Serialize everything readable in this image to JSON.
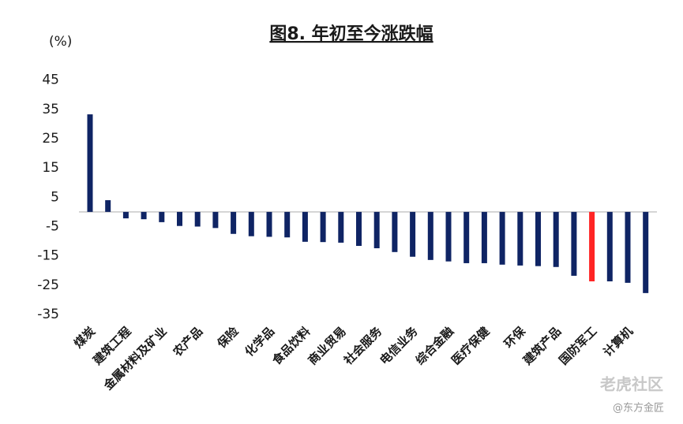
{
  "chart_data": {
    "type": "bar",
    "title": "图8. 年初至今涨跌幅",
    "y_label": "(%)",
    "categories": [
      "煤炭",
      null,
      "建筑工程",
      null,
      "金属材料及矿业",
      null,
      "农产品",
      null,
      "保险",
      null,
      "化学品",
      null,
      "食品饮料",
      null,
      "商业贸易",
      null,
      "社会服务",
      null,
      "电信业务",
      null,
      "综合金融",
      null,
      "医疗保健",
      null,
      "环保",
      null,
      "建筑产品",
      null,
      "国防军工",
      null,
      "计算机",
      null
    ],
    "values": [
      33.3,
      4,
      -2.2,
      -2.5,
      -3.5,
      -4.8,
      -5,
      -5.5,
      -7.5,
      -8.3,
      -8.5,
      -8.7,
      -10.2,
      -10.3,
      -10.5,
      -11.6,
      -12.4,
      -13.7,
      -15.3,
      -16.4,
      -16.9,
      -17.5,
      -17.5,
      -18,
      -18.3,
      -18.5,
      -18.8,
      -21.8,
      -23.7,
      -23.7,
      -24.2,
      -27.7
    ],
    "color": "#0f2464",
    "highlight": {
      "index": 28,
      "color": "#ff2424"
    },
    "ylim": [
      -35,
      45
    ],
    "yticks": [
      -35,
      -25,
      -15,
      -5,
      5,
      15,
      25,
      35,
      45
    ],
    "watermark": [
      "老虎社区",
      "@东方金匠"
    ]
  }
}
